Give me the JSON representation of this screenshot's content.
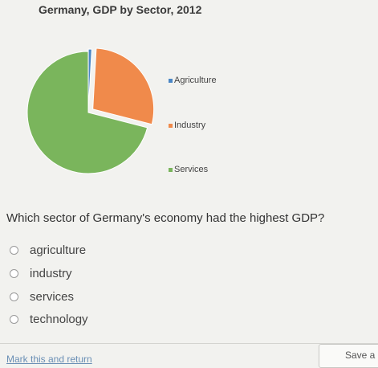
{
  "colors": {
    "agriculture": "#4a86c5",
    "industry": "#f08a4b",
    "services": "#7ab55c"
  },
  "chart_data": {
    "type": "pie",
    "title": "Germany, GDP by Sector, 2012",
    "categories": [
      "Agriculture",
      "Industry",
      "Services"
    ],
    "values": [
      0.9,
      28.1,
      71.0
    ],
    "legend": "right"
  },
  "question": {
    "text": "Which sector of Germany's economy had the highest GDP?",
    "options": [
      "agriculture",
      "industry",
      "services",
      "technology"
    ]
  },
  "footer": {
    "mark_link": "Mark this and return",
    "save_label": "Save a"
  }
}
